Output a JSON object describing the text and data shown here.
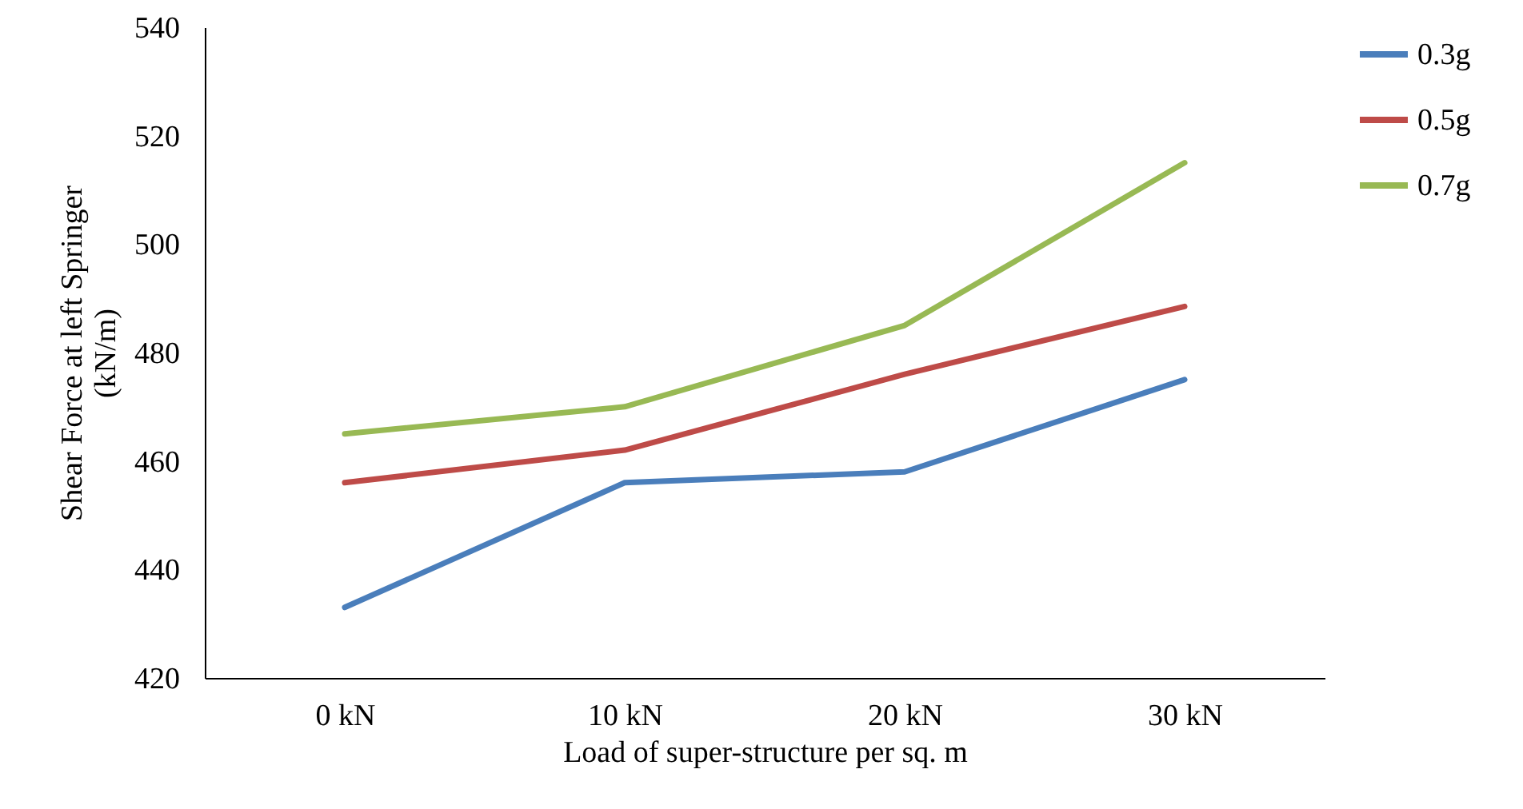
{
  "chart_data": {
    "type": "line",
    "xlabel": "Load of super-structure per sq. m",
    "ylabel": "Shear Force at left Springer\n(kN/m)",
    "categories": [
      "0 kN",
      "10 kN",
      "20 kN",
      "30 kN"
    ],
    "series": [
      {
        "name": "0.3g",
        "color": "#4a7ebb",
        "values": [
          433,
          456,
          458,
          475
        ]
      },
      {
        "name": "0.5g",
        "color": "#be4b48",
        "values": [
          456,
          462,
          476,
          488.5
        ]
      },
      {
        "name": "0.7g",
        "color": "#98b954",
        "values": [
          465,
          470,
          485,
          515
        ]
      }
    ],
    "ylim": [
      420,
      540
    ],
    "yticks": [
      420,
      440,
      460,
      480,
      500,
      520,
      540
    ],
    "grid": false,
    "legend": "right",
    "marker": "none",
    "line_style": "solid"
  }
}
